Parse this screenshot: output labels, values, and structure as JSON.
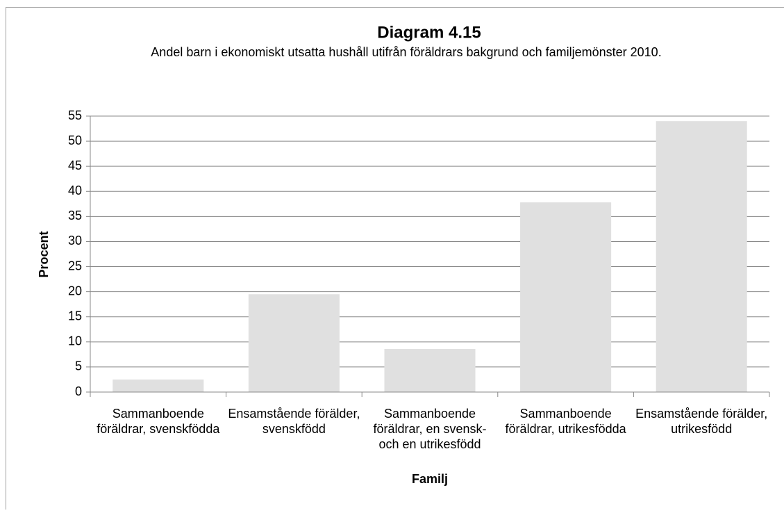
{
  "chart_data": {
    "type": "bar",
    "title": "Diagram 4.15",
    "subtitle": "Andel barn i ekonomiskt utsatta hushåll utifrån föräldrars bakgrund och familjemönster 2010.",
    "x_label": "Familj",
    "y_label": "Procent",
    "categories": [
      "Sammanboende föräldrar, svenskfödda",
      "Ensamstående förälder, svenskfödd",
      "Sammanboende föräldrar, en svensk- och en utrikesfödd",
      "Sammanboende föräldrar, utrikesfödda",
      "Ensamstående förälder, utrikesfödd"
    ],
    "values": [
      2.5,
      19.5,
      8.6,
      37.8,
      54.0
    ],
    "color": "#e0e0e0",
    "ylim": [
      0,
      55
    ],
    "yticks": [
      0,
      5,
      10,
      15,
      20,
      25,
      30,
      35,
      40,
      45,
      50,
      55
    ],
    "grid": true
  }
}
